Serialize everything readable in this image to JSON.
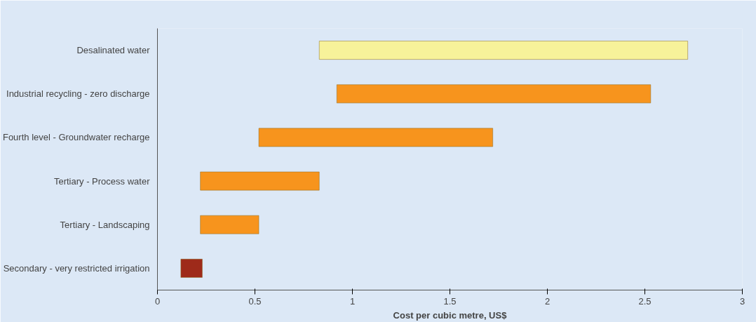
{
  "chart_data": {
    "type": "bar",
    "orientation": "horizontal",
    "xlabel": "Cost per cubic metre, US$",
    "categories": [
      "Desalinated water",
      "Industrial recycling - zero discharge",
      "Fourth level - Groundwater recharge",
      "Tertiary - Process water",
      "Tertiary - Landscaping",
      "Secondary - very restricted irrigation"
    ],
    "base": [
      0.83,
      0.92,
      0.52,
      0.22,
      0.22,
      0.12
    ],
    "values": [
      1.89,
      1.61,
      1.2,
      0.61,
      0.3,
      0.11
    ],
    "colors": [
      "#f7f29a",
      "#f7941d",
      "#f7941d",
      "#f7941d",
      "#f7941d",
      "#9e2a1a"
    ],
    "xlim": [
      0,
      3
    ],
    "xticks": [
      0,
      0.5,
      1,
      1.5,
      2,
      2.5,
      3
    ],
    "grid": false
  }
}
